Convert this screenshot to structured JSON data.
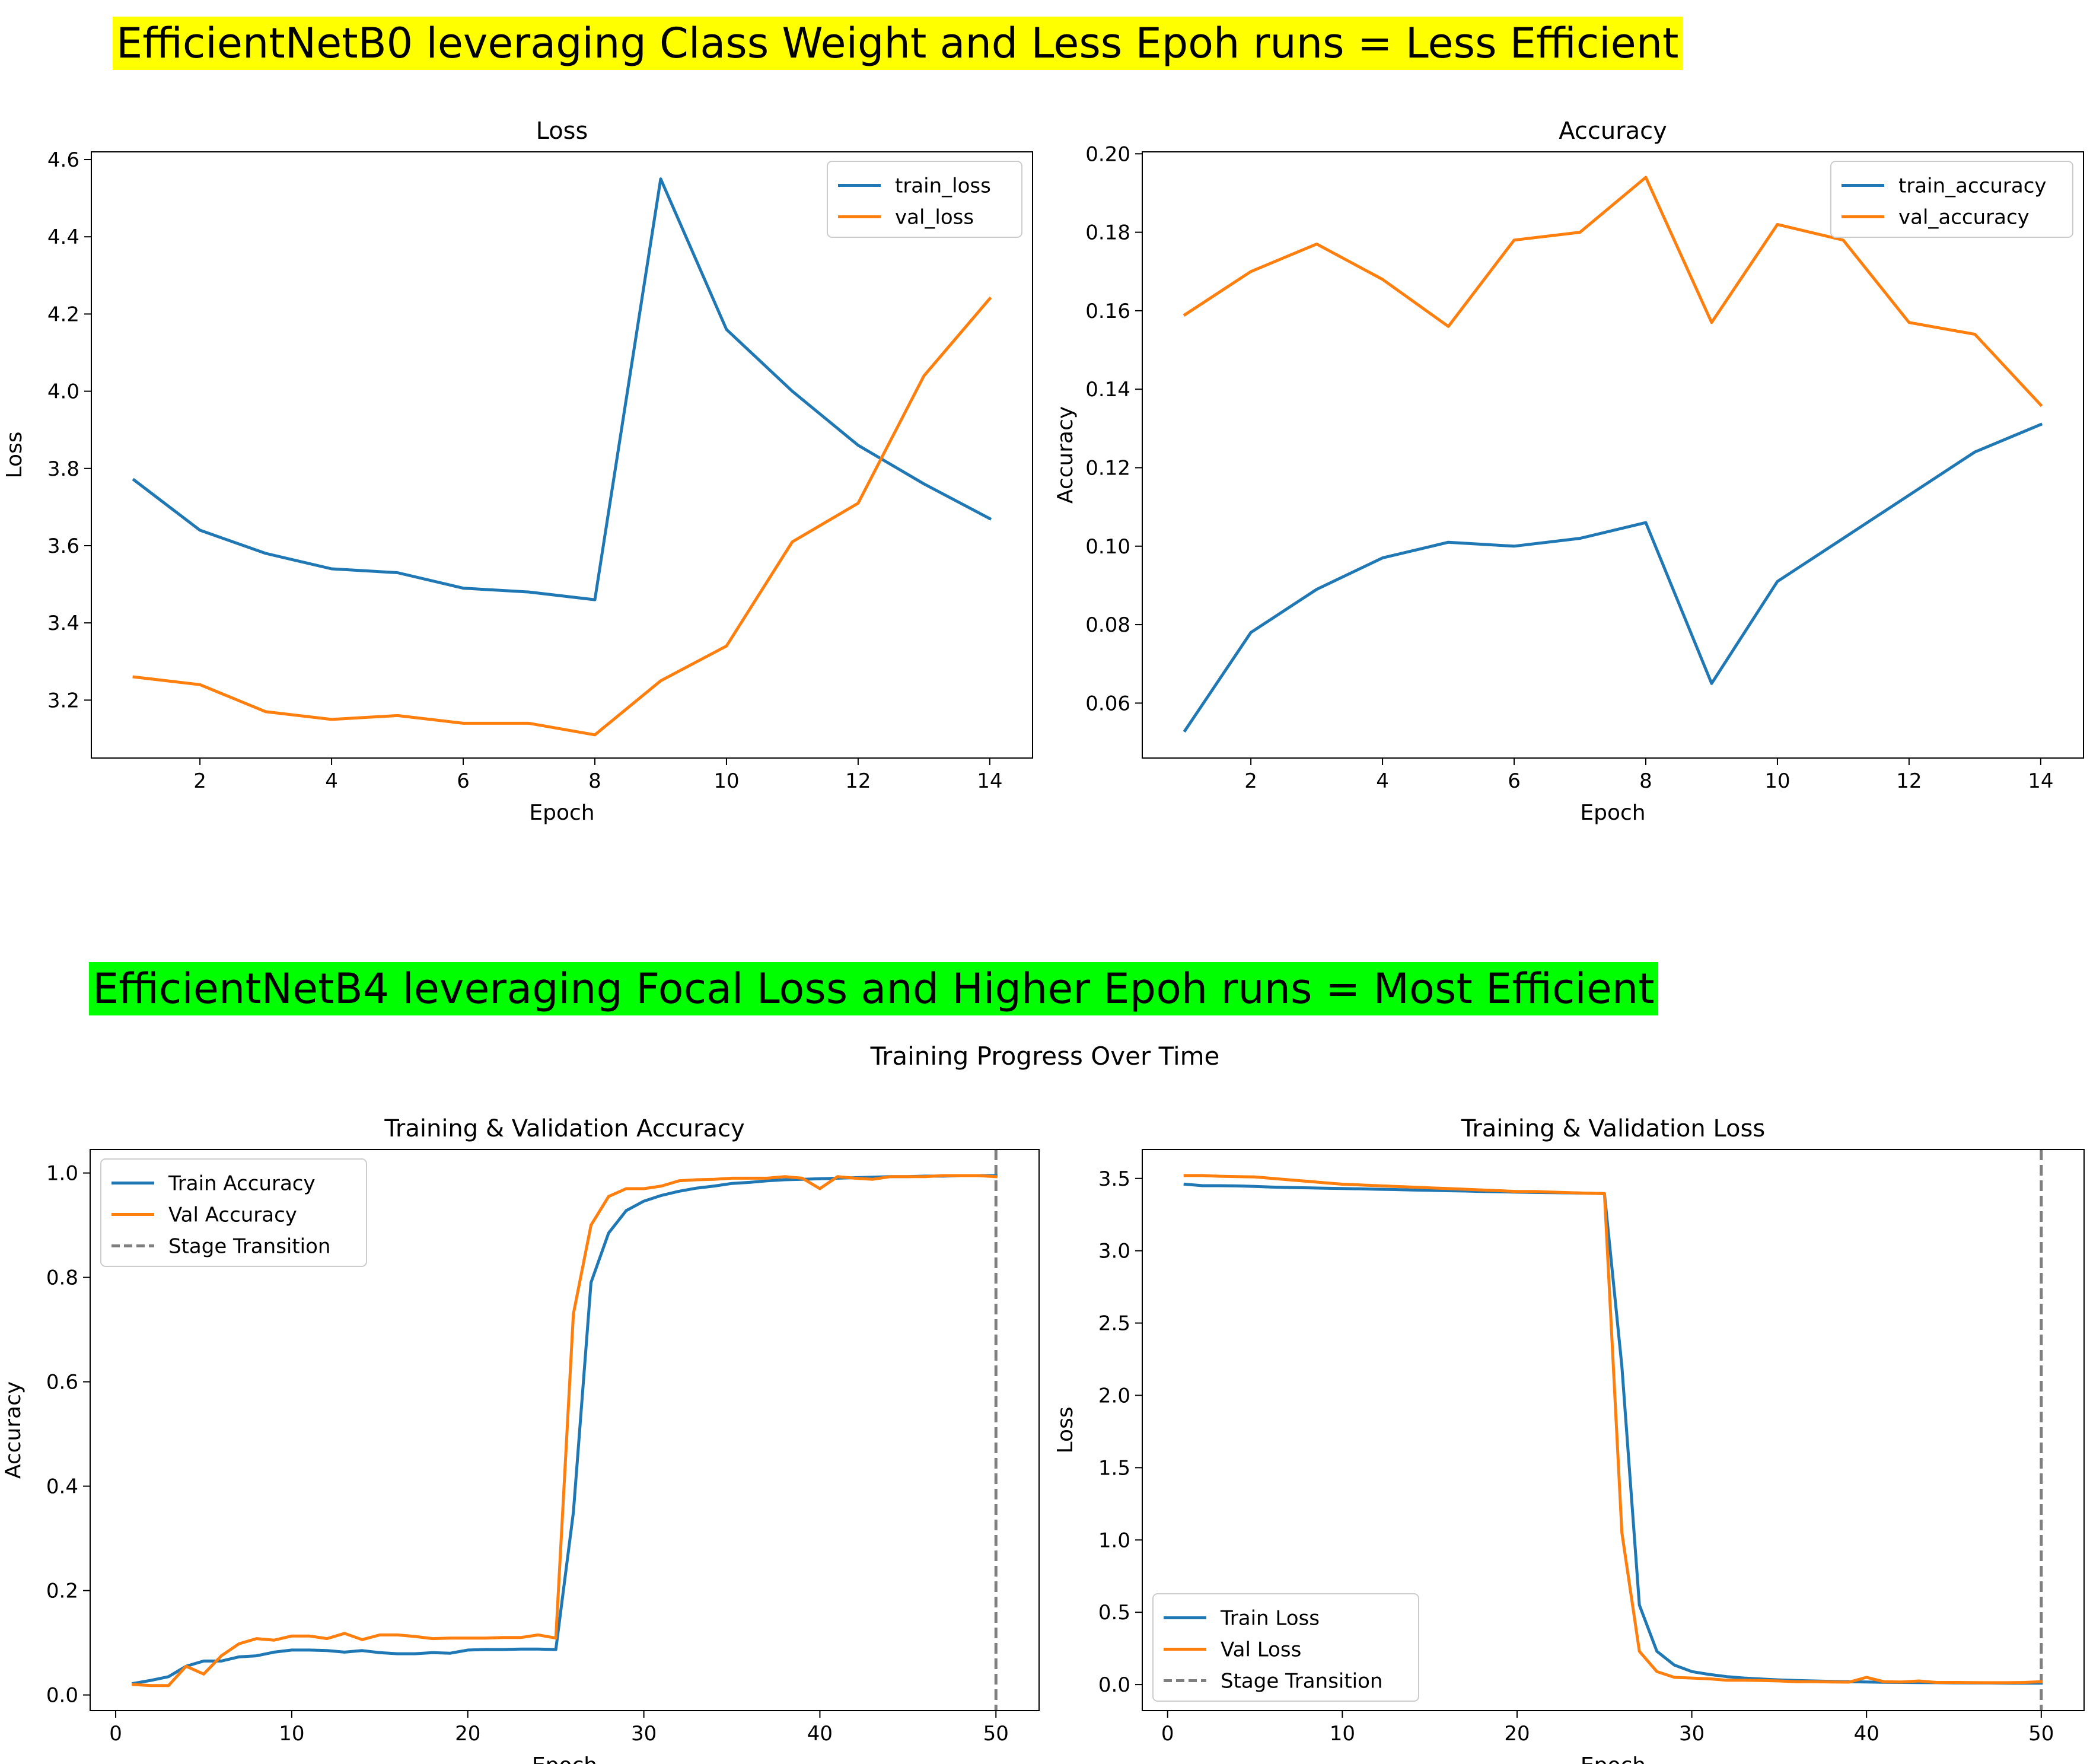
{
  "banners": [
    {
      "text": "EfficientNetB0 leveraging Class Weight and Less Epoh runs = Less Efficient",
      "color": "#ffff00"
    },
    {
      "text": "EfficientNetB4 leveraging Focal Loss and Higher Epoh  runs = Most Efficient",
      "color": "#00ff00"
    }
  ],
  "suptitle": "Training Progress Over Time",
  "colors": {
    "blue": "#1f77b4",
    "orange": "#ff7f0e",
    "gray": "#7f7f7f"
  },
  "chart_data": [
    {
      "type": "line",
      "title": "Loss",
      "xlabel": "Epoch",
      "ylabel": "Loss",
      "xlim": [
        0.35,
        14.65
      ],
      "ylim": [
        3.05,
        4.62
      ],
      "xticks": [
        2,
        4,
        6,
        8,
        10,
        12,
        14
      ],
      "yticks": [
        3.2,
        3.4,
        3.6,
        3.8,
        4.0,
        4.2,
        4.4,
        4.6
      ],
      "ytick_decimals": 1,
      "legend": "top-right",
      "x": [
        1,
        2,
        3,
        4,
        5,
        6,
        7,
        8,
        9,
        10,
        11,
        12,
        13,
        14
      ],
      "series": [
        {
          "name": "train_loss",
          "color": "#1f77b4",
          "values": [
            3.77,
            3.64,
            3.58,
            3.54,
            3.53,
            3.49,
            3.48,
            3.46,
            4.55,
            4.16,
            4.0,
            3.86,
            3.76,
            3.67
          ]
        },
        {
          "name": "val_loss",
          "color": "#ff7f0e",
          "values": [
            3.26,
            3.24,
            3.17,
            3.15,
            3.16,
            3.14,
            3.14,
            3.11,
            3.25,
            3.34,
            3.61,
            3.71,
            4.04,
            4.24
          ]
        }
      ]
    },
    {
      "type": "line",
      "title": "Accuracy",
      "xlabel": "Epoch",
      "ylabel": "Accuracy",
      "xlim": [
        0.35,
        14.65
      ],
      "ylim": [
        0.046,
        0.2005
      ],
      "xticks": [
        2,
        4,
        6,
        8,
        10,
        12,
        14
      ],
      "yticks": [
        0.06,
        0.08,
        0.1,
        0.12,
        0.14,
        0.16,
        0.18,
        0.2
      ],
      "ytick_decimals": 2,
      "legend": "top-right",
      "x": [
        1,
        2,
        3,
        4,
        5,
        6,
        7,
        8,
        9,
        10,
        11,
        12,
        13,
        14
      ],
      "series": [
        {
          "name": "train_accuracy",
          "color": "#1f77b4",
          "values": [
            0.053,
            0.078,
            0.089,
            0.097,
            0.101,
            0.1,
            0.102,
            0.106,
            0.065,
            0.091,
            0.102,
            0.113,
            0.124,
            0.131
          ]
        },
        {
          "name": "val_accuracy",
          "color": "#ff7f0e",
          "values": [
            0.159,
            0.17,
            0.177,
            0.168,
            0.156,
            0.178,
            0.18,
            0.194,
            0.157,
            0.182,
            0.178,
            0.157,
            0.154,
            0.136
          ]
        }
      ]
    },
    {
      "type": "line",
      "title": "Training & Validation Accuracy",
      "xlabel": "Epoch",
      "ylabel": "Accuracy",
      "xlim": [
        -1.45,
        52.45
      ],
      "ylim": [
        -0.03,
        1.045
      ],
      "xticks": [
        0,
        10,
        20,
        30,
        40,
        50
      ],
      "yticks": [
        0.0,
        0.2,
        0.4,
        0.6,
        0.8,
        1.0
      ],
      "ytick_decimals": 1,
      "legend": "top-left",
      "vline": {
        "x": 50,
        "name": "Stage Transition",
        "color": "#7f7f7f"
      },
      "x": [
        1,
        2,
        3,
        4,
        5,
        6,
        7,
        8,
        9,
        10,
        11,
        12,
        13,
        14,
        15,
        16,
        17,
        18,
        19,
        20,
        21,
        22,
        23,
        24,
        25,
        26,
        27,
        28,
        29,
        30,
        31,
        32,
        33,
        34,
        35,
        36,
        37,
        38,
        39,
        40,
        41,
        42,
        43,
        44,
        45,
        46,
        47,
        48,
        49,
        50
      ],
      "series": [
        {
          "name": "Train Accuracy",
          "color": "#1f77b4",
          "values": [
            0.022,
            0.028,
            0.035,
            0.055,
            0.065,
            0.065,
            0.073,
            0.075,
            0.082,
            0.086,
            0.086,
            0.085,
            0.082,
            0.085,
            0.081,
            0.079,
            0.079,
            0.081,
            0.08,
            0.086,
            0.087,
            0.087,
            0.088,
            0.088,
            0.087,
            0.35,
            0.79,
            0.885,
            0.928,
            0.946,
            0.957,
            0.965,
            0.971,
            0.975,
            0.98,
            0.982,
            0.985,
            0.987,
            0.988,
            0.989,
            0.99,
            0.991,
            0.992,
            0.993,
            0.993,
            0.994,
            0.994,
            0.995,
            0.995,
            0.995
          ]
        },
        {
          "name": "Val Accuracy",
          "color": "#ff7f0e",
          "values": [
            0.02,
            0.018,
            0.018,
            0.055,
            0.04,
            0.075,
            0.098,
            0.108,
            0.105,
            0.113,
            0.113,
            0.108,
            0.118,
            0.106,
            0.115,
            0.115,
            0.112,
            0.108,
            0.109,
            0.109,
            0.109,
            0.11,
            0.11,
            0.115,
            0.109,
            0.73,
            0.9,
            0.955,
            0.97,
            0.97,
            0.975,
            0.985,
            0.987,
            0.988,
            0.99,
            0.99,
            0.99,
            0.993,
            0.99,
            0.97,
            0.993,
            0.99,
            0.988,
            0.993,
            0.993,
            0.993,
            0.995,
            0.995,
            0.995,
            0.993
          ]
        }
      ]
    },
    {
      "type": "line",
      "title": "Training & Validation Loss",
      "xlabel": "Epoch",
      "ylabel": "Loss",
      "xlim": [
        -1.45,
        52.45
      ],
      "ylim": [
        -0.18,
        3.7
      ],
      "xticks": [
        0,
        10,
        20,
        30,
        40,
        50
      ],
      "yticks": [
        0.0,
        0.5,
        1.0,
        1.5,
        2.0,
        2.5,
        3.0,
        3.5
      ],
      "ytick_decimals": 1,
      "legend": "bottom-left",
      "vline": {
        "x": 50,
        "name": "Stage Transition",
        "color": "#7f7f7f"
      },
      "x": [
        1,
        2,
        3,
        4,
        5,
        6,
        7,
        8,
        9,
        10,
        11,
        12,
        13,
        14,
        15,
        16,
        17,
        18,
        19,
        20,
        21,
        22,
        23,
        24,
        25,
        26,
        27,
        28,
        29,
        30,
        31,
        32,
        33,
        34,
        35,
        36,
        37,
        38,
        39,
        40,
        41,
        42,
        43,
        44,
        45,
        46,
        47,
        48,
        49,
        50
      ],
      "series": [
        {
          "name": "Train Loss",
          "color": "#1f77b4",
          "values": [
            3.46,
            3.45,
            3.45,
            3.448,
            3.445,
            3.44,
            3.437,
            3.435,
            3.432,
            3.43,
            3.428,
            3.425,
            3.423,
            3.42,
            3.418,
            3.415,
            3.413,
            3.41,
            3.408,
            3.405,
            3.403,
            3.402,
            3.4,
            3.398,
            3.395,
            2.2,
            0.55,
            0.23,
            0.135,
            0.09,
            0.07,
            0.055,
            0.045,
            0.038,
            0.032,
            0.028,
            0.025,
            0.022,
            0.02,
            0.018,
            0.016,
            0.015,
            0.014,
            0.013,
            0.012,
            0.011,
            0.011,
            0.01,
            0.01,
            0.01
          ]
        },
        {
          "name": "Val Loss",
          "color": "#ff7f0e",
          "values": [
            3.52,
            3.52,
            3.515,
            3.512,
            3.51,
            3.5,
            3.49,
            3.48,
            3.47,
            3.46,
            3.455,
            3.45,
            3.445,
            3.44,
            3.435,
            3.43,
            3.425,
            3.42,
            3.415,
            3.41,
            3.41,
            3.405,
            3.402,
            3.398,
            3.395,
            1.05,
            0.23,
            0.09,
            0.05,
            0.045,
            0.04,
            0.03,
            0.03,
            0.028,
            0.025,
            0.02,
            0.02,
            0.018,
            0.017,
            0.05,
            0.02,
            0.018,
            0.025,
            0.015,
            0.015,
            0.014,
            0.013,
            0.013,
            0.015,
            0.02
          ]
        }
      ]
    }
  ]
}
